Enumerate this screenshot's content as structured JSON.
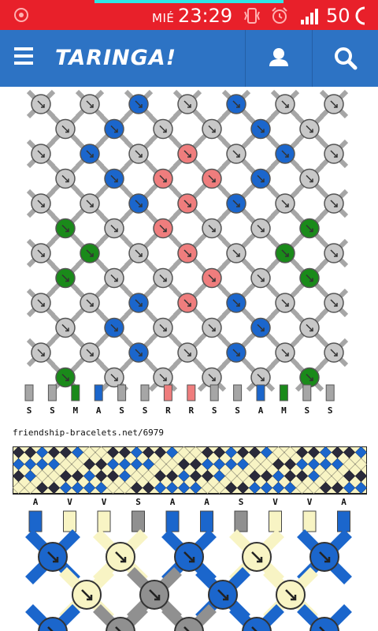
{
  "status_bar": {
    "day": "MIÉ",
    "time": "23:29",
    "battery": "50",
    "icons": [
      "notification-icon",
      "vibrate-icon",
      "alarm-icon",
      "signal-icon",
      "battery-icon"
    ]
  },
  "header": {
    "logo": "TARINGA!",
    "icons": [
      "menu-icon",
      "user-icon",
      "search-icon"
    ],
    "color": "#2d73c4"
  },
  "pattern": {
    "bottom_labels": [
      "S",
      "S",
      "M",
      "A",
      "S",
      "S",
      "R",
      "R",
      "S",
      "S",
      "A",
      "M",
      "S",
      "S"
    ],
    "colors": {
      "S": "#a6a6a6",
      "M": "#1a8a1a",
      "A": "#1b66cc",
      "R": "#ef7d7d"
    }
  },
  "source_url": "friendship-bracelets.net/6979",
  "preview": {
    "colors": {
      "dark": "#2a2a3a",
      "blue": "#1b66cc",
      "cream": "#f8f4c4"
    }
  },
  "pattern2": {
    "top_labels": [
      "A",
      "V",
      "V",
      "S",
      "A",
      "A",
      "S",
      "V",
      "V",
      "A"
    ],
    "colors": {
      "A": "#1b66cc",
      "V": "#f8f4c4",
      "S": "#909090"
    }
  }
}
